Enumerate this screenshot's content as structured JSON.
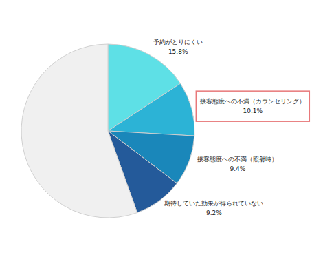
{
  "chart_data": {
    "type": "pie",
    "categories": [
      "予約がとりにくい",
      "接客態度への不満（カウンセリング）",
      "接客態度への不満（照射時）",
      "期待していた効果が得られていない",
      null
    ],
    "values": [
      15.8,
      10.1,
      9.4,
      9.2,
      55.5
    ],
    "value_labels": [
      "15.8%",
      "10.1%",
      "9.4%",
      "9.2%",
      null
    ],
    "colors": [
      "#5ee0e6",
      "#2cb3d6",
      "#1a87ba",
      "#245a9a",
      "#f0f0f0"
    ],
    "data_labels": true
  }
}
